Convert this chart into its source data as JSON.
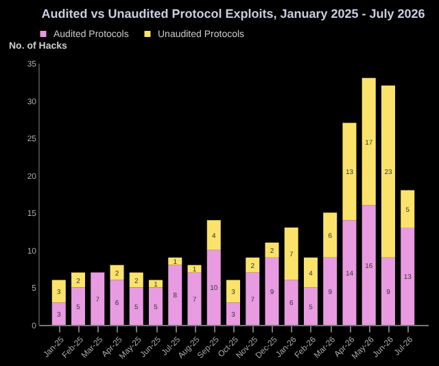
{
  "chart_data": {
    "type": "bar",
    "title": "Audited vs Unaudited Protocol Exploits, January 2025 - July 2026",
    "ylabel": "No. of Hacks",
    "categories": [
      "Jan-25",
      "Feb-25",
      "Mar-25",
      "Apr-25",
      "May-25",
      "Jun-25",
      "Jul-25",
      "Aug-25",
      "Sep-25",
      "Oct-25",
      "Nov-25",
      "Dec-25",
      "Jan-26",
      "Feb-26",
      "Mar-26",
      "Apr-26",
      "May-26",
      "Jun-26",
      "Jul-26"
    ],
    "series": [
      {
        "name": "Audited Protocols",
        "color": "#e89be0",
        "values": [
          3,
          5,
          7,
          6,
          5,
          5,
          8,
          7,
          10,
          3,
          7,
          9,
          6,
          5,
          9,
          14,
          16,
          9,
          13
        ]
      },
      {
        "name": "Unaudited Protocols",
        "color": "#fbe36b",
        "values": [
          3,
          2,
          null,
          2,
          2,
          1,
          1,
          1,
          4,
          3,
          2,
          2,
          7,
          4,
          6,
          13,
          17,
          23,
          5
        ]
      }
    ],
    "stacked": true,
    "ylim": [
      0,
      35
    ],
    "yticks": [
      0,
      5,
      10,
      15,
      20,
      25,
      30,
      35
    ],
    "grid": false,
    "legend": "top",
    "data_labels": true
  }
}
